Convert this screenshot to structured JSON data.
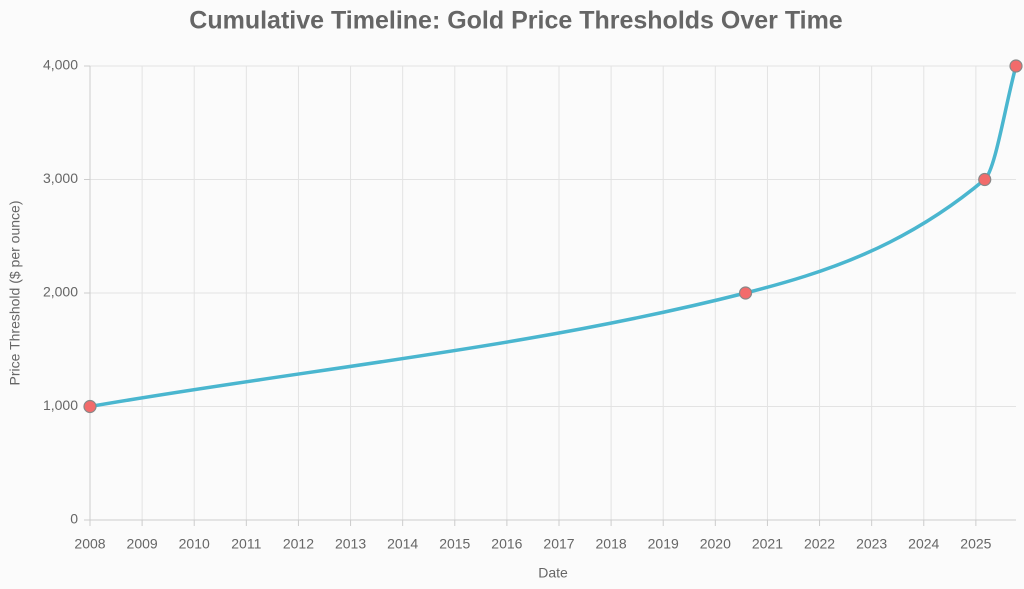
{
  "chart_data": {
    "type": "line",
    "title": "Cumulative Timeline: Gold Price Thresholds Over Time",
    "x_label": "Date",
    "y_label": "Price Threshold ($ per ounce)",
    "x": [
      2008,
      2020.58,
      2025.17,
      2025.77
    ],
    "values": [
      1000,
      2000,
      3000,
      4000
    ],
    "color": "#4ab6cf",
    "marker_color": "#f26b6b",
    "xlim": [
      2008,
      2025.77
    ],
    "xticks": [
      2008,
      2009,
      2010,
      2011,
      2012,
      2013,
      2014,
      2015,
      2016,
      2017,
      2018,
      2019,
      2020,
      2021,
      2022,
      2023,
      2024,
      2025
    ],
    "ylim": [
      0,
      4000
    ],
    "yticks": [
      0,
      {
        "value": 1000,
        "label": "1,000"
      },
      {
        "value": 2000,
        "label": "2,000"
      },
      {
        "value": 3000,
        "label": "3,000"
      },
      {
        "value": 4000,
        "label": "4,000"
      }
    ],
    "grid": true
  }
}
